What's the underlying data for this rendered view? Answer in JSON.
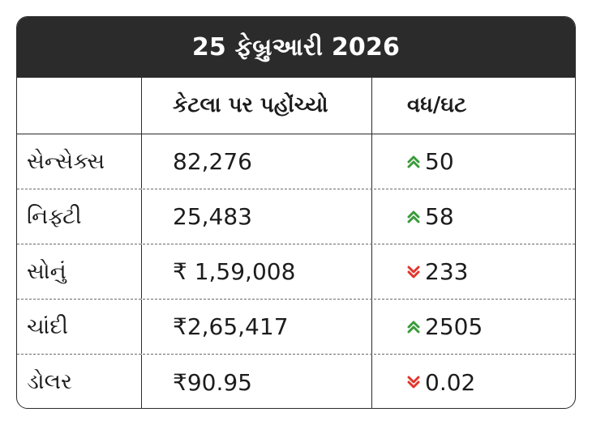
{
  "title": "25 ફેબ્રુઆરી 2026",
  "colors": {
    "header_bg": "#2b2b2b",
    "up": "#3a9a3a",
    "down": "#e0362c"
  },
  "table": {
    "headers": [
      "",
      "કેટલા પર પહોંચ્યો",
      "વધ/ઘટ"
    ],
    "rows": [
      {
        "name": "સેન્સેક્સ",
        "value": "82,276",
        "change": "50",
        "direction": "up",
        "icon": "double-chevron-up-icon"
      },
      {
        "name": "નિફ્ટી",
        "value": "25,483",
        "change": "58",
        "direction": "up",
        "icon": "double-chevron-up-icon"
      },
      {
        "name": "સોનું",
        "value": "₹ 1,59,008",
        "change": "233",
        "direction": "down",
        "icon": "double-chevron-down-icon"
      },
      {
        "name": "ચાંદી",
        "value": "₹2,65,417",
        "change": "2505",
        "direction": "up",
        "icon": "double-chevron-up-icon"
      },
      {
        "name": "ડોલર",
        "value": "₹90.95",
        "change": "0.02",
        "direction": "down",
        "icon": "double-chevron-down-icon"
      }
    ]
  }
}
